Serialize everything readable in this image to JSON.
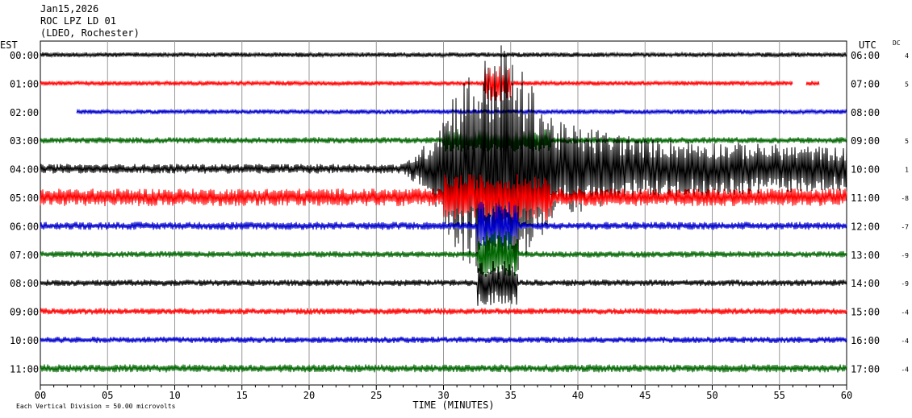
{
  "header": {
    "date": "Jan15,2026",
    "station": "ROC LPZ LD 01",
    "network": "(LDEO, Rochester)"
  },
  "chart_data": {
    "type": "line",
    "title": "",
    "xlabel": "TIME (MINUTES)",
    "xlim": [
      0,
      60
    ],
    "x_ticks": [
      "00",
      "05",
      "10",
      "15",
      "20",
      "25",
      "30",
      "35",
      "40",
      "45",
      "50",
      "55",
      "60"
    ],
    "left_axis_label": "EST",
    "right_axis_label": "UTC",
    "dc_label": "DC",
    "grid": true,
    "footer_note": "Each Vertical Division =   50.00 microvolts",
    "vertical_division_microvolts": 50.0,
    "line_colors": [
      "#000000",
      "#ff0000",
      "#0000cc",
      "#006600"
    ],
    "rows": [
      {
        "est": "00:00",
        "utc": "06:00",
        "dc": "4",
        "color": "#000000",
        "start_min": 0,
        "end_min": 60,
        "amplitude": 3
      },
      {
        "est": "01:00",
        "utc": "07:00",
        "dc": "5",
        "color": "#ff0000",
        "start_min": 0,
        "end_min": 56,
        "amplitude": 3
      },
      {
        "est": "02:00",
        "utc": "08:00",
        "dc": "",
        "color": "#0000cc",
        "start_min": 2.7,
        "end_min": 60,
        "amplitude": 3
      },
      {
        "est": "03:00",
        "utc": "09:00",
        "dc": "5",
        "color": "#006600",
        "start_min": 0,
        "end_min": 60,
        "amplitude": 4
      },
      {
        "est": "04:00",
        "utc": "10:00",
        "dc": "1",
        "color": "#000000",
        "start_min": 0,
        "end_min": 60,
        "amplitude": 6
      },
      {
        "est": "05:00",
        "utc": "11:00",
        "dc": "-8",
        "color": "#ff0000",
        "start_min": 0,
        "end_min": 60,
        "amplitude": 11
      },
      {
        "est": "06:00",
        "utc": "12:00",
        "dc": "-7",
        "color": "#0000cc",
        "start_min": 0,
        "end_min": 60,
        "amplitude": 5
      },
      {
        "est": "07:00",
        "utc": "13:00",
        "dc": "-9",
        "color": "#006600",
        "start_min": 0,
        "end_min": 60,
        "amplitude": 4
      },
      {
        "est": "08:00",
        "utc": "14:00",
        "dc": "-9",
        "color": "#000000",
        "start_min": 0,
        "end_min": 60,
        "amplitude": 4
      },
      {
        "est": "09:00",
        "utc": "15:00",
        "dc": "-4",
        "color": "#ff0000",
        "start_min": 0,
        "end_min": 60,
        "amplitude": 4
      },
      {
        "est": "10:00",
        "utc": "16:00",
        "dc": "-4",
        "color": "#0000cc",
        "start_min": 0,
        "end_min": 60,
        "amplitude": 4
      },
      {
        "est": "11:00",
        "utc": "17:00",
        "dc": "-4",
        "color": "#006600",
        "start_min": 0,
        "end_min": 60,
        "amplitude": 5
      }
    ],
    "event": {
      "row": 4,
      "onset_min": 27,
      "peak_min": 33.5,
      "coda_end_min": 60
    }
  }
}
